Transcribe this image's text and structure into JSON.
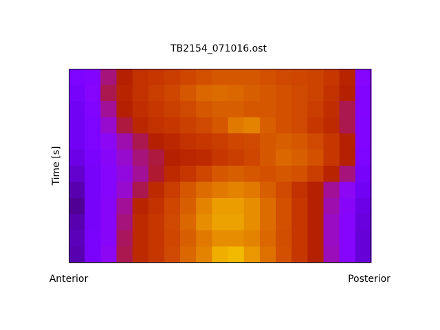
{
  "chart_data": {
    "type": "heatmap",
    "title": "TB2154_071016.ost",
    "y_label": "Time [s]",
    "annotations": [
      "Anterior",
      "Posterior"
    ],
    "colormap": "gnuplot",
    "zlim": [
      0,
      1
    ],
    "values": [
      [
        0.24,
        0.26,
        0.42,
        0.5,
        0.58,
        0.6,
        0.62,
        0.65,
        0.68,
        0.7,
        0.7,
        0.7,
        0.68,
        0.66,
        0.65,
        0.64,
        0.6,
        0.52,
        0.27
      ],
      [
        0.22,
        0.27,
        0.45,
        0.52,
        0.58,
        0.62,
        0.65,
        0.7,
        0.74,
        0.75,
        0.74,
        0.72,
        0.7,
        0.68,
        0.66,
        0.64,
        0.58,
        0.5,
        0.26
      ],
      [
        0.2,
        0.25,
        0.4,
        0.5,
        0.56,
        0.6,
        0.63,
        0.66,
        0.7,
        0.72,
        0.72,
        0.7,
        0.7,
        0.68,
        0.66,
        0.62,
        0.56,
        0.45,
        0.26
      ],
      [
        0.2,
        0.24,
        0.35,
        0.46,
        0.54,
        0.58,
        0.6,
        0.63,
        0.66,
        0.7,
        0.78,
        0.8,
        0.72,
        0.68,
        0.66,
        0.6,
        0.55,
        0.45,
        0.25
      ],
      [
        0.2,
        0.24,
        0.3,
        0.38,
        0.45,
        0.5,
        0.54,
        0.58,
        0.6,
        0.62,
        0.65,
        0.66,
        0.7,
        0.72,
        0.7,
        0.66,
        0.6,
        0.5,
        0.25
      ],
      [
        0.18,
        0.23,
        0.28,
        0.35,
        0.42,
        0.46,
        0.5,
        0.53,
        0.55,
        0.6,
        0.62,
        0.65,
        0.7,
        0.74,
        0.72,
        0.68,
        0.6,
        0.5,
        0.24
      ],
      [
        0.15,
        0.22,
        0.27,
        0.33,
        0.4,
        0.47,
        0.55,
        0.6,
        0.65,
        0.7,
        0.72,
        0.7,
        0.68,
        0.7,
        0.68,
        0.62,
        0.52,
        0.42,
        0.22
      ],
      [
        0.12,
        0.22,
        0.27,
        0.35,
        0.45,
        0.55,
        0.62,
        0.7,
        0.75,
        0.78,
        0.8,
        0.78,
        0.72,
        0.66,
        0.58,
        0.5,
        0.4,
        0.3,
        0.2
      ],
      [
        0.1,
        0.22,
        0.28,
        0.4,
        0.52,
        0.58,
        0.65,
        0.72,
        0.8,
        0.85,
        0.85,
        0.82,
        0.75,
        0.68,
        0.6,
        0.5,
        0.38,
        0.28,
        0.18
      ],
      [
        0.12,
        0.22,
        0.28,
        0.42,
        0.55,
        0.6,
        0.66,
        0.74,
        0.82,
        0.86,
        0.86,
        0.82,
        0.75,
        0.68,
        0.6,
        0.5,
        0.36,
        0.27,
        0.17
      ],
      [
        0.13,
        0.23,
        0.28,
        0.44,
        0.55,
        0.6,
        0.65,
        0.72,
        0.78,
        0.82,
        0.82,
        0.8,
        0.74,
        0.67,
        0.6,
        0.5,
        0.36,
        0.27,
        0.16
      ],
      [
        0.12,
        0.23,
        0.3,
        0.45,
        0.55,
        0.6,
        0.66,
        0.74,
        0.8,
        0.88,
        0.9,
        0.84,
        0.76,
        0.68,
        0.6,
        0.5,
        0.37,
        0.27,
        0.16
      ]
    ]
  }
}
